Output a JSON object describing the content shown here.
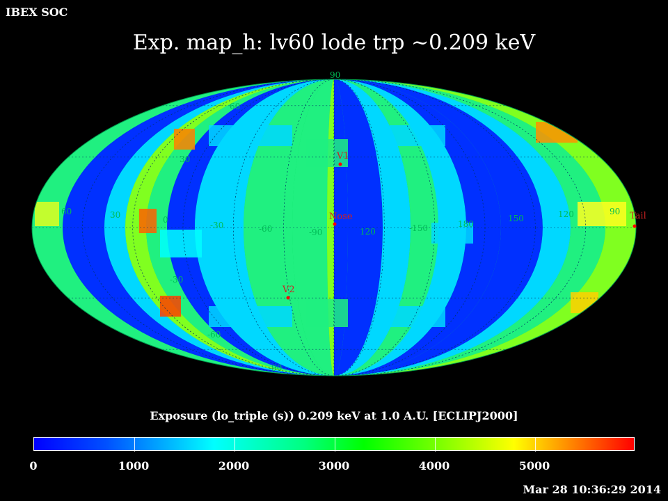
{
  "header": {
    "org": "IBEX SOC",
    "title": "Exp.   map_h: lv60 lode trp ~0.209 keV"
  },
  "map": {
    "projection": "Mollweide ellipse",
    "coordinate_frame": "ECLIPJ2000",
    "longitude_labels": [
      "60",
      "30",
      "0",
      "-30",
      "-60",
      "-90",
      "120",
      "-150",
      "180",
      "150",
      "120",
      "90"
    ],
    "latitude_labels": [
      "90",
      "60",
      "30",
      "-30",
      "-60",
      "-90"
    ],
    "markers": [
      {
        "name": "V1",
        "color": "#ff0000"
      },
      {
        "name": "Nose",
        "color": "#ff0000"
      },
      {
        "name": "V2",
        "color": "#ff0000"
      },
      {
        "name": "Tail",
        "color": "#ff0000"
      }
    ],
    "marker_label_color": "#cc2222",
    "grid_label_color": "#00cc66"
  },
  "colorbar": {
    "caption": "Exposure (lo_triple (s))  0.209 keV at 1.0 A.U. [ECLIPJ2000]",
    "min": 0,
    "max": 6000,
    "tick_labels": [
      "0",
      "1000",
      "2000",
      "3000",
      "4000",
      "5000"
    ],
    "colors": [
      "#0000ff",
      "#00ffff",
      "#00ff00",
      "#ffff00",
      "#ff0000"
    ]
  },
  "footer": {
    "timestamp": "Mar 28 10:36:29 2014"
  }
}
